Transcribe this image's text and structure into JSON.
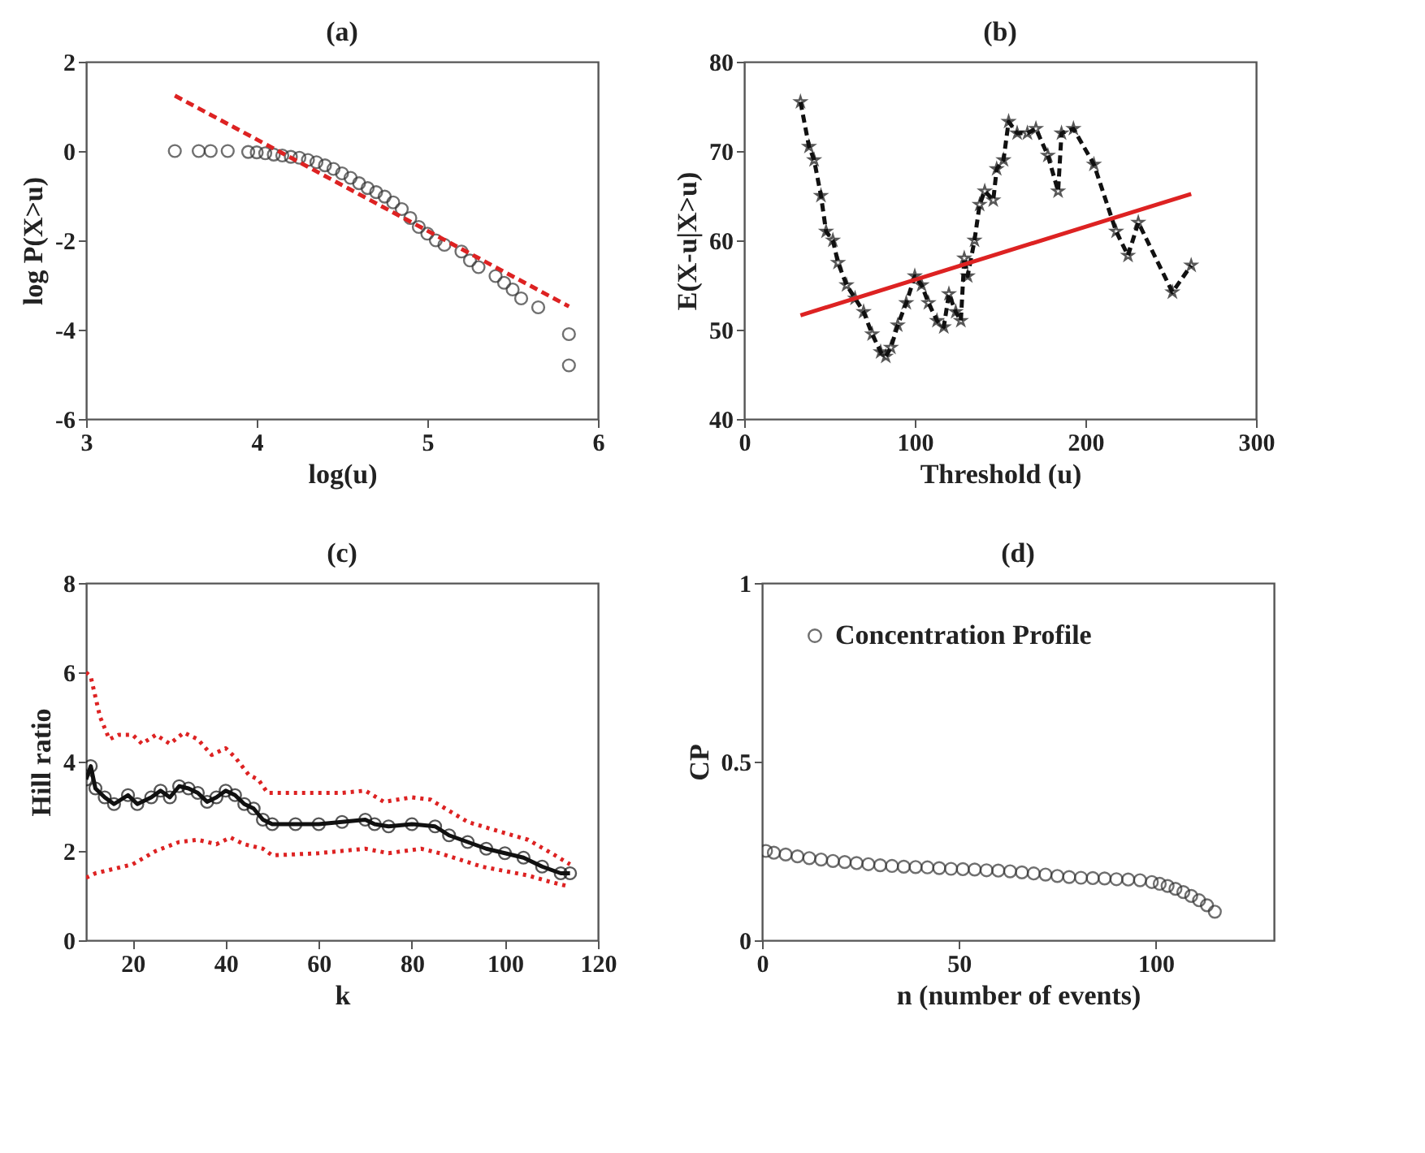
{
  "chart_data": [
    {
      "type": "scatter",
      "title": "(a)",
      "xlabel": "log(u)",
      "ylabel": "log P(X>u)",
      "xlim": [
        3,
        6
      ],
      "ylim": [
        -6,
        2
      ],
      "xticks": [
        3,
        4,
        5,
        6
      ],
      "yticks": [
        -6,
        -4,
        -2,
        0,
        2
      ],
      "grid": false,
      "legend": false,
      "marker": "circle",
      "series": [
        {
          "color": "#333333",
          "x": [
            3.52,
            3.66,
            3.73,
            3.83,
            3.95,
            4.0,
            4.05,
            4.1,
            4.15,
            4.2,
            4.25,
            4.3,
            4.35,
            4.4,
            4.45,
            4.5,
            4.55,
            4.6,
            4.65,
            4.7,
            4.75,
            4.8,
            4.85,
            4.9,
            4.95,
            5.0,
            5.05,
            5.1,
            5.2,
            5.25,
            5.3,
            5.4,
            5.45,
            5.5,
            5.55,
            5.65,
            5.83,
            5.83
          ],
          "values": [
            0,
            0,
            0,
            0,
            -0.02,
            -0.03,
            -0.05,
            -0.08,
            -0.1,
            -0.13,
            -0.15,
            -0.2,
            -0.25,
            -0.32,
            -0.4,
            -0.5,
            -0.6,
            -0.72,
            -0.83,
            -0.92,
            -1.02,
            -1.15,
            -1.3,
            -1.5,
            -1.7,
            -1.85,
            -2.0,
            -2.1,
            -2.25,
            -2.45,
            -2.6,
            -2.8,
            -2.95,
            -3.1,
            -3.3,
            -3.5,
            -4.1,
            -4.8
          ]
        },
        {
          "type": "line",
          "color": "#dd2222",
          "line_style": "dashed",
          "marker": "none",
          "x": [
            3.52,
            5.83
          ],
          "values": [
            1.24,
            -3.48
          ]
        }
      ]
    },
    {
      "type": "line",
      "title": "(b)",
      "xlabel": "Threshold (u)",
      "ylabel": "E(X-u|X>u)",
      "xlim": [
        0,
        300
      ],
      "ylim": [
        40,
        80
      ],
      "xticks": [
        0,
        100,
        200,
        300
      ],
      "yticks": [
        40,
        50,
        60,
        70,
        80
      ],
      "grid": false,
      "legend": false,
      "series": [
        {
          "color": "#111111",
          "line_style": "dashed",
          "marker": "star",
          "x": [
            33,
            38,
            41,
            45,
            48,
            52,
            55,
            60,
            65,
            70,
            75,
            80,
            83,
            86,
            90,
            95,
            100,
            104,
            108,
            113,
            117,
            120,
            124,
            127,
            129,
            131,
            135,
            138,
            141,
            146,
            148,
            152,
            155,
            160,
            166,
            171,
            178,
            184,
            186,
            193,
            205,
            218,
            225,
            231,
            251,
            262
          ],
          "values": [
            75.5,
            70.5,
            69,
            65,
            61,
            60,
            57.5,
            55,
            53.5,
            52,
            49.5,
            47.5,
            47,
            48,
            50.5,
            53,
            56,
            55,
            53,
            51,
            50.3,
            54,
            52,
            51,
            58,
            56,
            60,
            64,
            65.5,
            64.5,
            68,
            69,
            73.3,
            72,
            72,
            72.5,
            69.5,
            65.5,
            72,
            72.5,
            68.5,
            61,
            58.3,
            62,
            54.2,
            57.2
          ]
        },
        {
          "color": "#dd2222",
          "line_style": "solid",
          "marker": "none",
          "x": [
            33,
            262
          ],
          "values": [
            51.6,
            65.2
          ]
        }
      ]
    },
    {
      "type": "line",
      "title": "(c)",
      "xlabel": "k",
      "ylabel": "Hill ratio",
      "xlim": [
        10,
        120
      ],
      "ylim": [
        0,
        8
      ],
      "xticks": [
        20,
        40,
        60,
        80,
        100,
        120
      ],
      "yticks": [
        0,
        2,
        4,
        6,
        8
      ],
      "grid": false,
      "legend": false,
      "series": [
        {
          "color": "#111111",
          "line_style": "solid",
          "marker": "circle",
          "x": [
            10,
            11,
            12,
            14,
            16,
            19,
            21,
            24,
            26,
            28,
            30,
            32,
            34,
            36,
            38,
            40,
            42,
            44,
            46,
            48,
            50,
            55,
            60,
            65,
            70,
            72,
            75,
            80,
            85,
            88,
            92,
            96,
            100,
            104,
            108,
            112,
            114
          ],
          "values": [
            3.6,
            3.9,
            3.4,
            3.2,
            3.05,
            3.25,
            3.05,
            3.2,
            3.35,
            3.2,
            3.45,
            3.4,
            3.3,
            3.1,
            3.2,
            3.35,
            3.25,
            3.05,
            2.95,
            2.7,
            2.6,
            2.6,
            2.6,
            2.65,
            2.7,
            2.6,
            2.55,
            2.6,
            2.55,
            2.35,
            2.2,
            2.05,
            1.95,
            1.85,
            1.65,
            1.5,
            1.5
          ]
        },
        {
          "color": "#dd2222",
          "line_style": "dotted",
          "marker": "none",
          "x": [
            10,
            11,
            13,
            15,
            17,
            20,
            22,
            25,
            28,
            31,
            34,
            37,
            40,
            42,
            45,
            47,
            49,
            55,
            60,
            65,
            70,
            74,
            80,
            84,
            88,
            92,
            100,
            105,
            110,
            114
          ],
          "values": [
            6.0,
            5.9,
            5.0,
            4.5,
            4.6,
            4.6,
            4.4,
            4.6,
            4.4,
            4.65,
            4.5,
            4.15,
            4.3,
            4.1,
            3.7,
            3.6,
            3.3,
            3.3,
            3.3,
            3.3,
            3.35,
            3.1,
            3.2,
            3.15,
            2.9,
            2.65,
            2.4,
            2.25,
            1.95,
            1.7
          ]
        },
        {
          "color": "#dd2222",
          "line_style": "dotted",
          "marker": "none",
          "x": [
            10,
            12,
            20,
            25,
            30,
            34,
            38,
            41,
            44,
            48,
            50,
            60,
            70,
            75,
            82,
            86,
            95,
            105,
            110,
            114
          ],
          "values": [
            1.4,
            1.5,
            1.7,
            2.0,
            2.2,
            2.25,
            2.15,
            2.3,
            2.15,
            2.05,
            1.9,
            1.95,
            2.05,
            1.95,
            2.05,
            1.95,
            1.65,
            1.45,
            1.3,
            1.2
          ]
        }
      ]
    },
    {
      "type": "scatter",
      "title": "(d)",
      "xlabel": "n (number of events)",
      "ylabel": "CP",
      "xlim": [
        0,
        130
      ],
      "ylim": [
        0,
        1
      ],
      "xticks": [
        0,
        50,
        100
      ],
      "yticks": [
        0,
        0.5,
        1
      ],
      "grid": false,
      "legend": "top left",
      "marker": "circle",
      "series": [
        {
          "name": "Concentration Profile",
          "color": "#333333",
          "x": [
            1,
            3,
            6,
            9,
            12,
            15,
            18,
            21,
            24,
            27,
            30,
            33,
            36,
            39,
            42,
            45,
            48,
            51,
            54,
            57,
            60,
            63,
            66,
            69,
            72,
            75,
            78,
            81,
            84,
            87,
            90,
            93,
            96,
            99,
            101,
            103,
            105,
            107,
            109,
            111,
            113,
            115
          ],
          "values": [
            0.25,
            0.245,
            0.24,
            0.235,
            0.23,
            0.226,
            0.222,
            0.219,
            0.216,
            0.213,
            0.21,
            0.208,
            0.206,
            0.205,
            0.204,
            0.202,
            0.2,
            0.199,
            0.198,
            0.196,
            0.195,
            0.193,
            0.19,
            0.187,
            0.184,
            0.18,
            0.177,
            0.175,
            0.174,
            0.173,
            0.171,
            0.17,
            0.168,
            0.163,
            0.158,
            0.152,
            0.144,
            0.135,
            0.124,
            0.112,
            0.098,
            0.08
          ]
        }
      ]
    }
  ]
}
